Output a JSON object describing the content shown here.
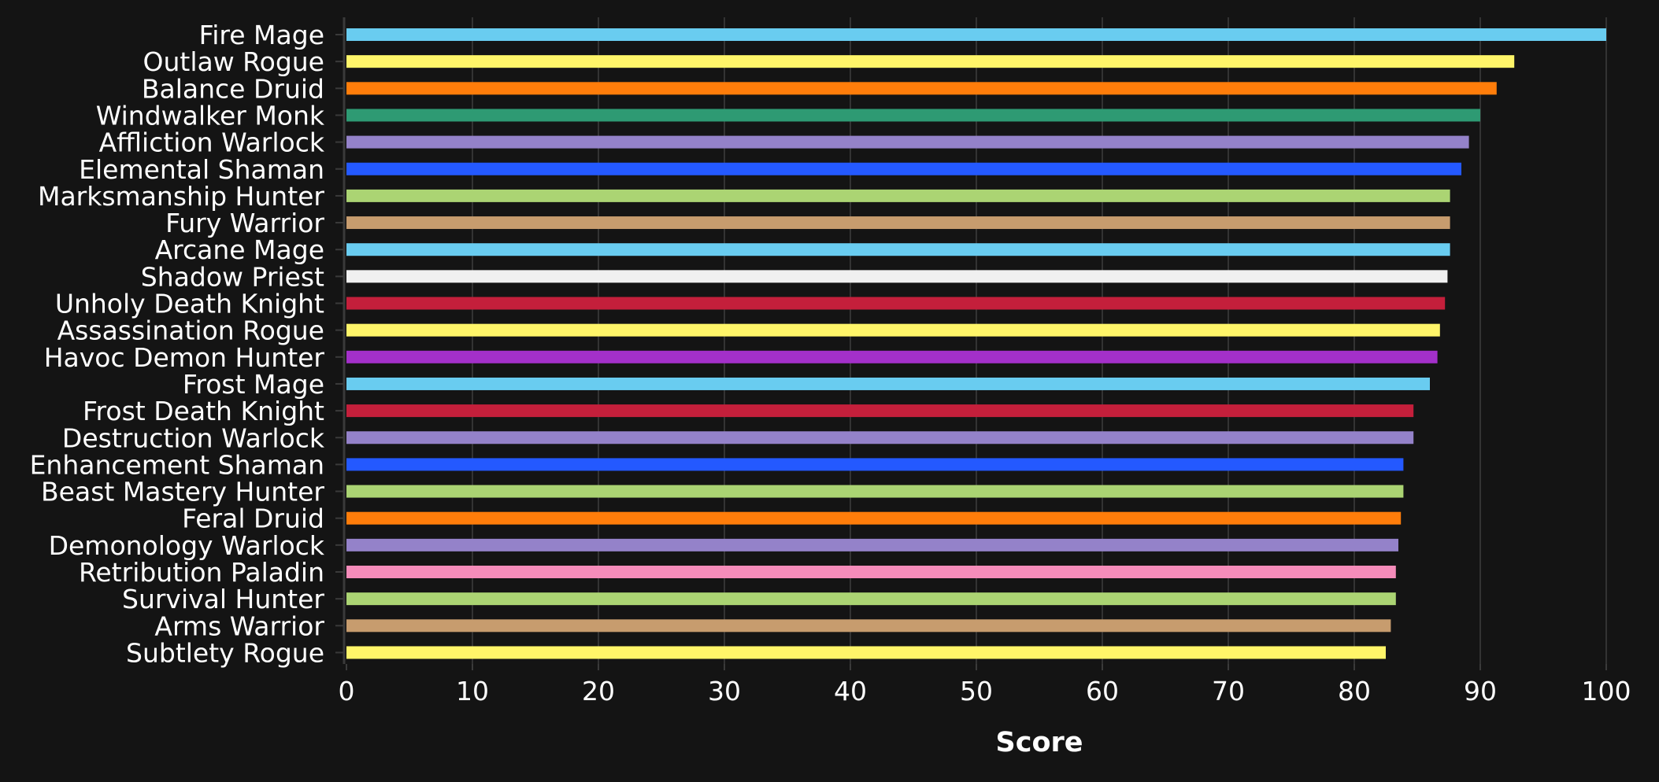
{
  "chart_data": {
    "type": "bar",
    "orientation": "horizontal",
    "xlabel": "Score",
    "ylabel": "",
    "xlim": [
      0,
      100
    ],
    "xticks": [
      "0",
      "10",
      "20",
      "30",
      "40",
      "50",
      "60",
      "70",
      "80",
      "90",
      "100"
    ],
    "grid": true,
    "legend": "none",
    "background": "#141414",
    "categories": [
      "Fire Mage",
      "Outlaw Rogue",
      "Balance Druid",
      "Windwalker Monk",
      "Affliction Warlock",
      "Elemental Shaman",
      "Marksmanship Hunter",
      "Fury Warrior",
      "Arcane Mage",
      "Shadow Priest",
      "Unholy Death Knight",
      "Assassination Rogue",
      "Havoc Demon Hunter",
      "Frost Mage",
      "Frost Death Knight",
      "Destruction Warlock",
      "Enhancement Shaman",
      "Beast Mastery Hunter",
      "Feral Druid",
      "Demonology Warlock",
      "Retribution Paladin",
      "Survival Hunter",
      "Arms Warrior",
      "Subtlety Rogue"
    ],
    "values": [
      100.0,
      92.7,
      91.3,
      90.0,
      89.1,
      88.5,
      87.6,
      87.6,
      87.6,
      87.4,
      87.2,
      86.8,
      86.6,
      86.0,
      84.7,
      84.7,
      83.9,
      83.9,
      83.7,
      83.5,
      83.3,
      83.3,
      82.9,
      82.5
    ],
    "colors": [
      "#69CCF0",
      "#FFF569",
      "#FF7D0A",
      "#2E9A73",
      "#9482C9",
      "#2459FF",
      "#ABD473",
      "#C79C6E",
      "#69CCF0",
      "#F0F0F0",
      "#C41F3B",
      "#FFF569",
      "#A330C9",
      "#69CCF0",
      "#C41F3B",
      "#9482C9",
      "#2459FF",
      "#ABD473",
      "#FF7D0A",
      "#9482C9",
      "#F58CBA",
      "#ABD473",
      "#C79C6E",
      "#FFF569"
    ]
  }
}
